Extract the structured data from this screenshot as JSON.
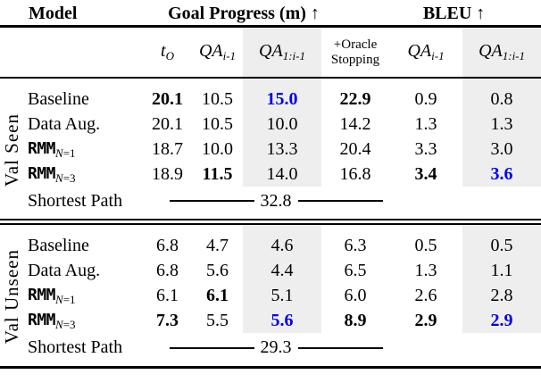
{
  "colors": {
    "accent_blue": "#0000EE",
    "highlight_gray": "#EEEEEE"
  },
  "header": {
    "model": "Model",
    "goal_progress": "Goal Progress (m)",
    "bleu": "BLEU",
    "up_arrow": "↑"
  },
  "subheader": {
    "t": "t",
    "t_sub": "O",
    "qa": "QA",
    "qa_prev_sub": "i-1",
    "qa_all_sub": "1:i-1",
    "oracle_line1": "+Oracle",
    "oracle_line2": "Stopping"
  },
  "sections": [
    {
      "group_label": "Val Seen",
      "rows": [
        {
          "model": "Baseline",
          "values": [
            "20.1",
            "10.5",
            "15.0",
            "22.9",
            "0.9",
            "0.8"
          ],
          "bold_columns": [
            0,
            3
          ],
          "blue_columns": [
            2
          ]
        },
        {
          "model": "Data Aug.",
          "values": [
            "20.1",
            "10.5",
            "10.0",
            "14.2",
            "1.3",
            "1.3"
          ],
          "bold_columns": [],
          "blue_columns": []
        },
        {
          "model": "RMM",
          "model_sub_var": "N",
          "model_sub_rest": "=1",
          "values": [
            "18.7",
            "10.0",
            "13.3",
            "20.4",
            "3.3",
            "3.0"
          ],
          "bold_columns": [],
          "blue_columns": []
        },
        {
          "model": "RMM",
          "model_sub_var": "N",
          "model_sub_rest": "=3",
          "values": [
            "18.9",
            "11.5",
            "14.0",
            "16.8",
            "3.4",
            "3.6"
          ],
          "bold_columns": [
            1,
            4
          ],
          "blue_columns": [
            5
          ]
        },
        {
          "model": "Shortest Path",
          "span_value": "32.8"
        }
      ]
    },
    {
      "group_label": "Val Unseen",
      "rows": [
        {
          "model": "Baseline",
          "values": [
            "6.8",
            "4.7",
            "4.6",
            "6.3",
            "0.5",
            "0.5"
          ],
          "bold_columns": [],
          "blue_columns": []
        },
        {
          "model": "Data Aug.",
          "values": [
            "6.8",
            "5.6",
            "4.4",
            "6.5",
            "1.3",
            "1.1"
          ],
          "bold_columns": [],
          "blue_columns": []
        },
        {
          "model": "RMM",
          "model_sub_var": "N",
          "model_sub_rest": "=1",
          "values": [
            "6.1",
            "6.1",
            "5.1",
            "6.0",
            "2.6",
            "2.8"
          ],
          "bold_columns": [
            1
          ],
          "blue_columns": []
        },
        {
          "model": "RMM",
          "model_sub_var": "N",
          "model_sub_rest": "=3",
          "values": [
            "7.3",
            "5.5",
            "5.6",
            "8.9",
            "2.9",
            "2.9"
          ],
          "bold_columns": [
            0,
            3,
            4
          ],
          "blue_columns": [
            2,
            5
          ]
        },
        {
          "model": "Shortest Path",
          "span_value": "29.3"
        }
      ]
    }
  ]
}
